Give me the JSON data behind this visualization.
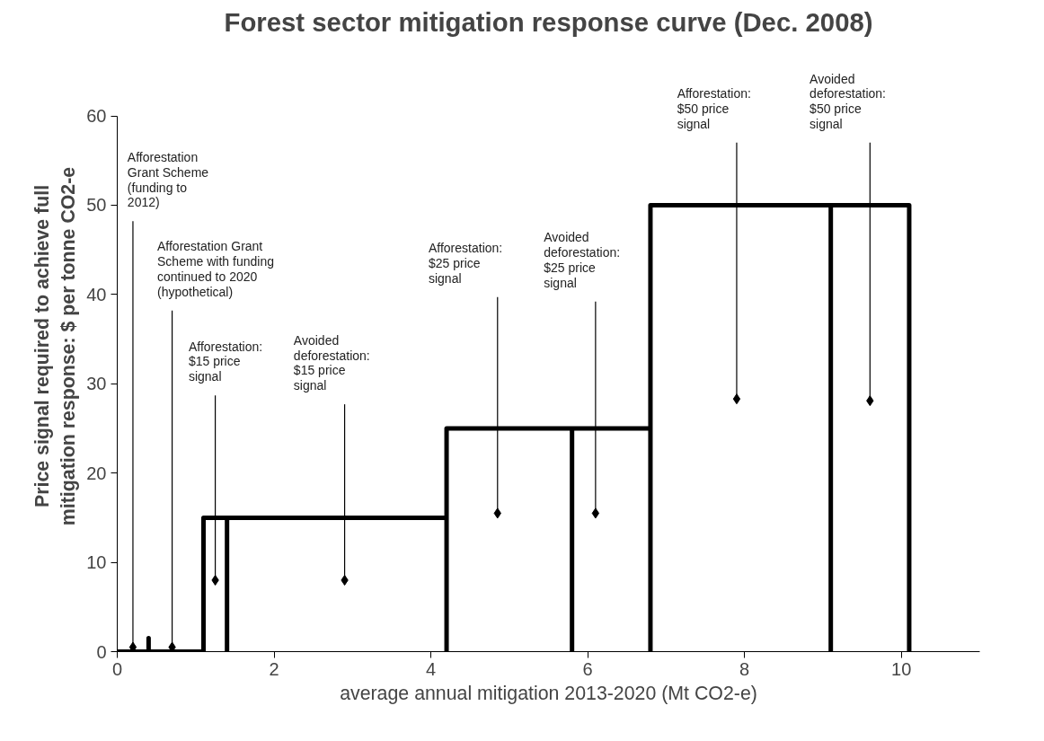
{
  "chart_data": {
    "type": "line",
    "title": "Forest sector mitigation response curve (Dec. 2008)",
    "xlabel": "average annual mitigation 2013-2020 (Mt CO2-e)",
    "ylabel": "Price signal required to achieve full\nmitigation response: $ per tonne CO2-e",
    "x": [
      0,
      0.4,
      0.4,
      0.4,
      1.1,
      1.1,
      1.4,
      1.4,
      1.4,
      4.2,
      4.2,
      4.2,
      5.8,
      5.8,
      5.8,
      6.8,
      6.8,
      6.8,
      9.1,
      9.1,
      9.1,
      10.1,
      10.1
    ],
    "series": [
      {
        "color": "#000000",
        "values": [
          0,
          0,
          1.5,
          0,
          0,
          15,
          15,
          0,
          15,
          15,
          0,
          25,
          25,
          0,
          25,
          25,
          0,
          50,
          50,
          0,
          50,
          50,
          0
        ]
      }
    ],
    "xlim": [
      0,
      11
    ],
    "xticks": [
      0,
      2,
      4,
      6,
      8,
      10
    ],
    "ylim": [
      0,
      60
    ],
    "yticks": [
      0,
      10,
      20,
      30,
      40,
      50,
      60
    ],
    "grid": false,
    "marker": "none",
    "line_style": "solid",
    "annotations": [
      {
        "text": "Afforestation\nGrant Scheme\n(funding to\n2012)",
        "x": 0.2,
        "y": 0.5
      },
      {
        "text": "Afforestation Grant\nScheme with funding\ncontinued to 2020\n(hypothetical)",
        "x": 0.7,
        "y": 0.5
      },
      {
        "text": "Afforestation:\n$15 price\nsignal",
        "x": 1.25,
        "y": 8
      },
      {
        "text": "Avoided\ndeforestation:\n$15 price\nsignal",
        "x": 2.9,
        "y": 8
      },
      {
        "text": "Afforestation:\n$25 price\nsignal",
        "x": 4.85,
        "y": 15.5
      },
      {
        "text": "Avoided\ndeforestation:\n$25 price\nsignal",
        "x": 6.1,
        "y": 15.5
      },
      {
        "text": "Afforestation:\n$50 price\nsignal",
        "x": 7.9,
        "y": 28.3
      },
      {
        "text": "Avoided\ndeforestation:\n$50 price\nsignal",
        "x": 9.6,
        "y": 28.1
      }
    ]
  }
}
